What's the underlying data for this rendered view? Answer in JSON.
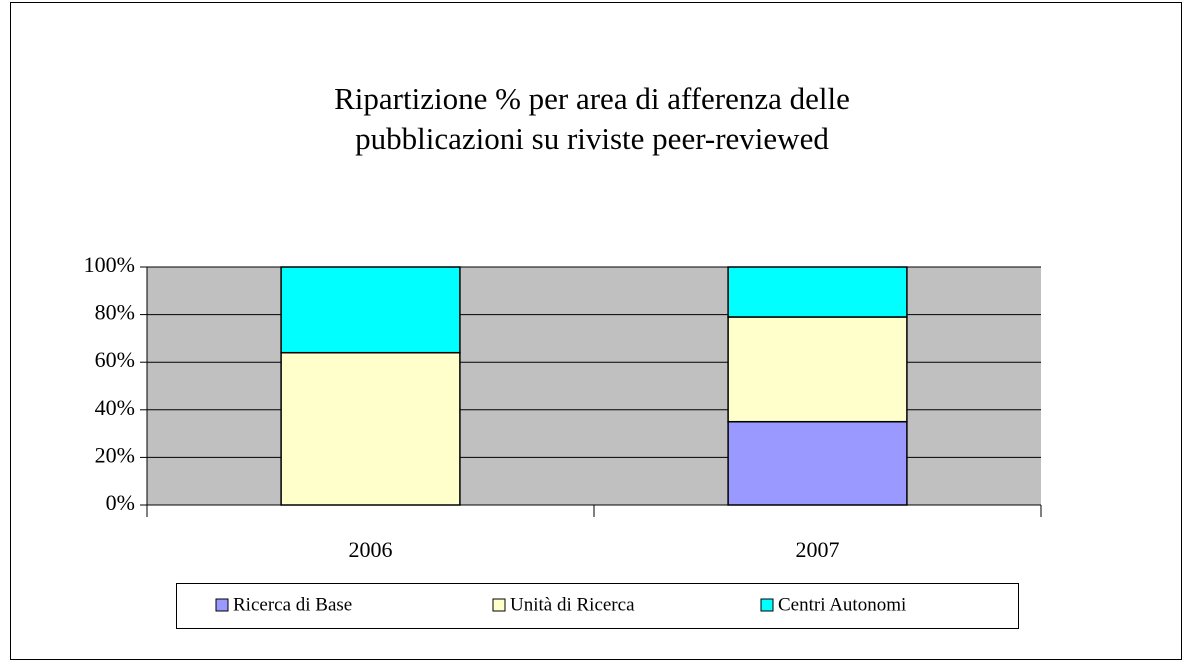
{
  "chart_data": {
    "type": "stacked_bar_percent",
    "title": [
      "Ripartizione % per area di afferenza delle",
      "pubblicazioni su riviste peer-reviewed"
    ],
    "categories": [
      "2006",
      "2007"
    ],
    "series": [
      {
        "name": "Ricerca di Base",
        "color": "#9999ff",
        "values": [
          0,
          35
        ]
      },
      {
        "name": "Unità di Ricerca",
        "color": "#ffffcc",
        "values": [
          64,
          44
        ]
      },
      {
        "name": "Centri Autonomi",
        "color": "#00ffff",
        "values": [
          36,
          21
        ]
      }
    ],
    "ylim": [
      0,
      100
    ],
    "yticks": [
      {
        "value": 0,
        "label": "0%"
      },
      {
        "value": 20,
        "label": "20%"
      },
      {
        "value": 40,
        "label": "40%"
      },
      {
        "value": 60,
        "label": "60%"
      },
      {
        "value": 80,
        "label": "80%"
      },
      {
        "value": 100,
        "label": "100%"
      }
    ],
    "grid": true,
    "plot_background": "#c0c0c0",
    "legend": "bottom"
  }
}
